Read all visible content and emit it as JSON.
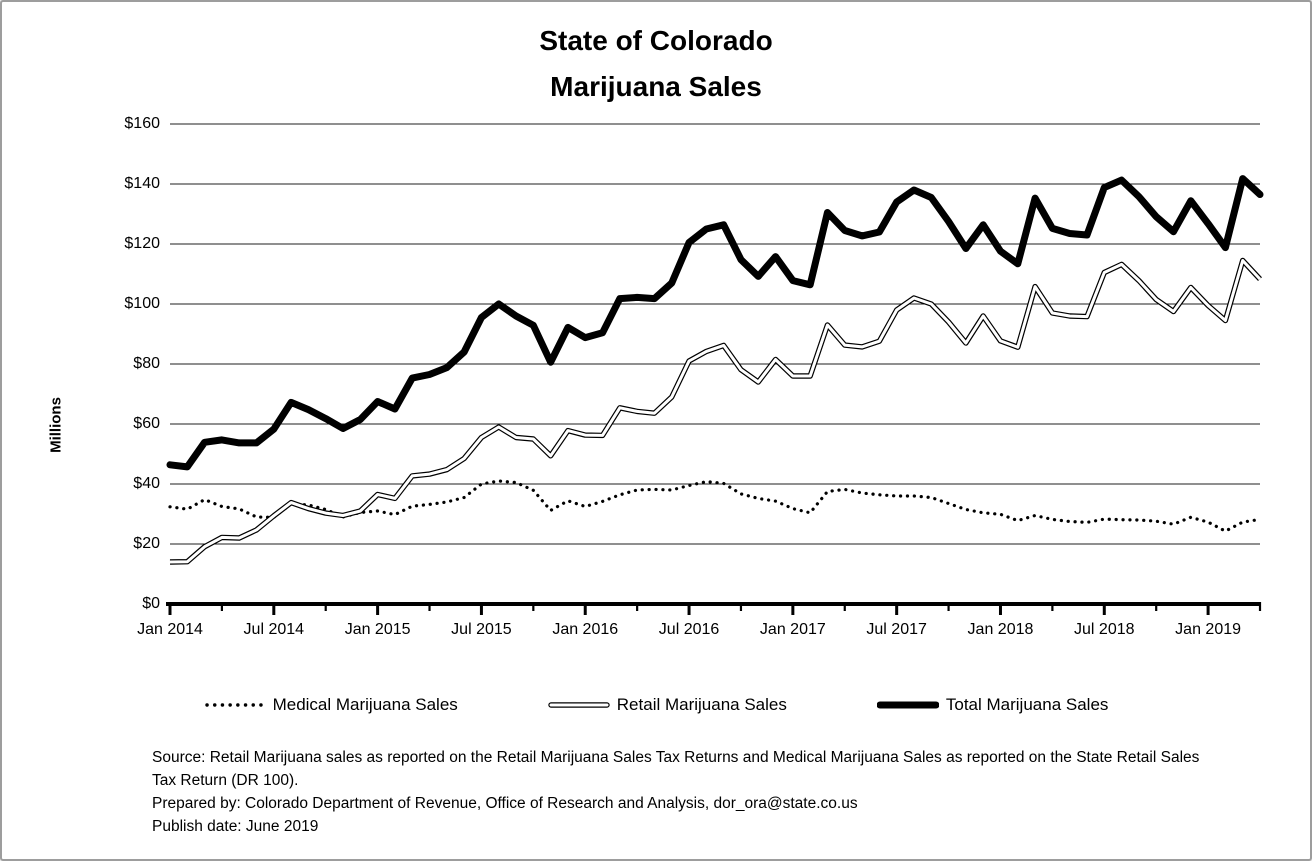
{
  "title": {
    "line1": "State of Colorado",
    "line2": "Marijuana Sales"
  },
  "chart_data": {
    "type": "line",
    "title": "State of Colorado Marijuana Sales",
    "xlabel": "",
    "ylabel": "Millions",
    "ylim": [
      0,
      160
    ],
    "ytick_step": 20,
    "ytick_labels": [
      "$0",
      "$20",
      "$40",
      "$60",
      "$80",
      "$100",
      "$120",
      "$140",
      "$160"
    ],
    "grid": true,
    "legend_position": "bottom",
    "x_axis_tick_labels": [
      "Jan 2014",
      "Jul 2014",
      "Jan 2015",
      "Jul 2015",
      "Jan 2016",
      "Jul 2016",
      "Jan 2017",
      "Jul 2017",
      "Jan 2018",
      "Jul 2018",
      "Jan 2019"
    ],
    "x": [
      "Jan 2014",
      "Feb 2014",
      "Mar 2014",
      "Apr 2014",
      "May 2014",
      "Jun 2014",
      "Jul 2014",
      "Aug 2014",
      "Sep 2014",
      "Oct 2014",
      "Nov 2014",
      "Dec 2014",
      "Jan 2015",
      "Feb 2015",
      "Mar 2015",
      "Apr 2015",
      "May 2015",
      "Jun 2015",
      "Jul 2015",
      "Aug 2015",
      "Sep 2015",
      "Oct 2015",
      "Nov 2015",
      "Dec 2015",
      "Jan 2016",
      "Feb 2016",
      "Mar 2016",
      "Apr 2016",
      "May 2016",
      "Jun 2016",
      "Jul 2016",
      "Aug 2016",
      "Sep 2016",
      "Oct 2016",
      "Nov 2016",
      "Dec 2016",
      "Jan 2017",
      "Feb 2017",
      "Mar 2017",
      "Apr 2017",
      "May 2017",
      "Jun 2017",
      "Jul 2017",
      "Aug 2017",
      "Sep 2017",
      "Oct 2017",
      "Nov 2017",
      "Dec 2017",
      "Jan 2018",
      "Feb 2018",
      "Mar 2018",
      "Apr 2018",
      "May 2018",
      "Jun 2018",
      "Jul 2018",
      "Aug 2018",
      "Sep 2018",
      "Oct 2018",
      "Nov 2018",
      "Dec 2018",
      "Jan 2019",
      "Feb 2019",
      "Mar 2019",
      "Apr 2019"
    ],
    "series": [
      {
        "name": "Medical Marijuana Sales",
        "style": "dotted",
        "color": "#000000",
        "values": [
          32.4,
          31.6,
          34.8,
          32.5,
          31.7,
          29.0,
          28.9,
          33.4,
          33.0,
          31.5,
          29.0,
          30.5,
          31.0,
          29.8,
          32.6,
          33.2,
          34.0,
          35.5,
          40.0,
          41.0,
          40.5,
          37.9,
          31.2,
          34.4,
          32.5,
          34.2,
          36.4,
          38.0,
          38.2,
          38.0,
          39.5,
          40.8,
          40.2,
          36.7,
          35.2,
          34.3,
          31.8,
          30.4,
          37.5,
          38.2,
          37.0,
          36.4,
          36.0,
          36.0,
          35.5,
          33.5,
          31.5,
          30.4,
          29.9,
          27.8,
          29.5,
          28.2,
          27.5,
          27.2,
          28.3,
          28.1,
          28.0,
          27.6,
          26.6,
          28.9,
          27.3,
          24.3,
          27.3,
          28.2
        ]
      },
      {
        "name": "Retail Marijuana Sales",
        "style": "double-line",
        "color": "#000000",
        "values": [
          14.0,
          14.1,
          19.1,
          22.2,
          22.0,
          24.7,
          29.4,
          33.8,
          31.8,
          30.3,
          29.5,
          31.0,
          36.5,
          35.2,
          42.7,
          43.3,
          44.8,
          48.5,
          55.5,
          59.0,
          55.5,
          55.0,
          49.4,
          57.8,
          56.3,
          56.2,
          65.4,
          64.2,
          63.6,
          69.0,
          81.0,
          84.2,
          86.2,
          78.1,
          74.0,
          81.5,
          76.0,
          76.0,
          93.0,
          86.3,
          85.7,
          87.6,
          98.0,
          102.0,
          100.0,
          94.0,
          87.0,
          96.0,
          87.7,
          85.6,
          105.8,
          97.0,
          96.0,
          95.8,
          110.5,
          113.2,
          107.8,
          101.5,
          97.5,
          105.5,
          99.5,
          94.5,
          114.5,
          108.3
        ]
      },
      {
        "name": "Total Marijuana Sales",
        "style": "thick-solid",
        "color": "#000000",
        "values": [
          46.4,
          45.7,
          53.9,
          54.7,
          53.7,
          53.7,
          58.3,
          67.2,
          64.8,
          61.8,
          58.5,
          61.5,
          67.5,
          65.0,
          75.3,
          76.5,
          78.8,
          84.0,
          95.5,
          100.0,
          96.0,
          92.9,
          80.6,
          92.2,
          88.8,
          90.4,
          101.8,
          102.2,
          101.8,
          107.0,
          120.5,
          125.0,
          126.4,
          114.8,
          109.2,
          115.8,
          107.8,
          106.4,
          130.5,
          124.5,
          122.7,
          124.0,
          134.0,
          138.0,
          135.5,
          127.5,
          118.5,
          126.4,
          117.6,
          113.4,
          135.3,
          125.2,
          123.5,
          123.0,
          138.8,
          141.3,
          135.8,
          129.1,
          124.1,
          134.4,
          126.8,
          118.8,
          141.8,
          136.5
        ]
      }
    ]
  },
  "footer": {
    "source_line1": "Source: Retail Marijuana sales as reported on the Retail Marijuana Sales Tax Returns and Medical Marijuana Sales as reported on the State Retail Sales",
    "source_line2": "Tax Return (DR 100).",
    "prepared_by": "Prepared by: Colorado Department of Revenue, Office of Research and Analysis, dor_ora@state.co.us",
    "publish_date": "Publish date: June 2019"
  },
  "colors": {
    "line": "#000000",
    "gridline": "#1f1f1f",
    "background": "#ffffff",
    "border": "#9d9d9d",
    "text": "#000000"
  }
}
